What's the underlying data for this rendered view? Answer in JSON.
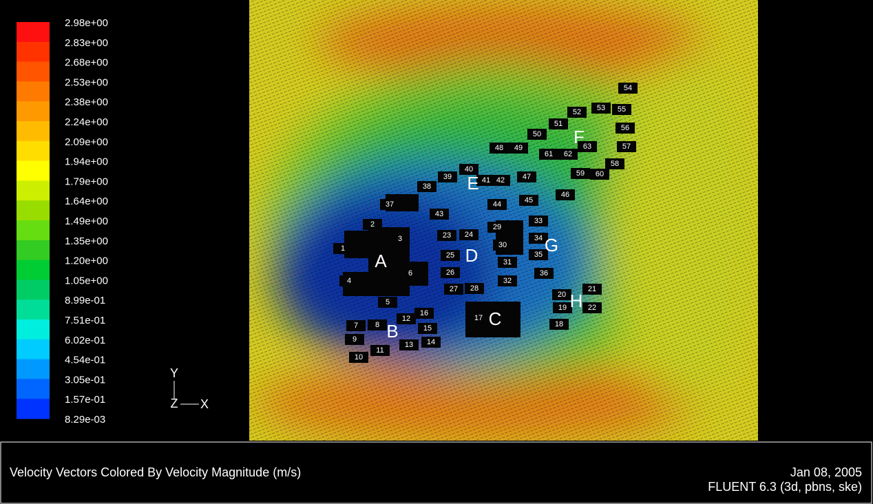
{
  "legend": {
    "labels": [
      "2.98e+00",
      "2.83e+00",
      "2.68e+00",
      "2.53e+00",
      "2.38e+00",
      "2.24e+00",
      "2.09e+00",
      "1.94e+00",
      "1.79e+00",
      "1.64e+00",
      "1.49e+00",
      "1.35e+00",
      "1.20e+00",
      "1.05e+00",
      "8.99e-01",
      "7.51e-01",
      "6.02e-01",
      "4.54e-01",
      "3.05e-01",
      "1.57e-01",
      "8.29e-03"
    ],
    "colors": [
      "#ff1010",
      "#ff3300",
      "#ff5500",
      "#ff7a00",
      "#ff9900",
      "#ffbb00",
      "#ffdd00",
      "#ffff00",
      "#ccee00",
      "#99dd00",
      "#66dd11",
      "#33cc22",
      "#00cc33",
      "#00cc66",
      "#00dd99",
      "#00eedd",
      "#00ccff",
      "#0099ff",
      "#0066ff",
      "#0033ff"
    ]
  },
  "axes": {
    "y": "Y",
    "z": "Z",
    "x": "X"
  },
  "buildings": [
    "1",
    "2",
    "3",
    "4",
    "5",
    "6",
    "7",
    "8",
    "9",
    "10",
    "11",
    "12",
    "13",
    "14",
    "15",
    "16",
    "17",
    "18",
    "19",
    "20",
    "21",
    "22",
    "23",
    "24",
    "25",
    "26",
    "27",
    "28",
    "29",
    "30",
    "31",
    "32",
    "33",
    "34",
    "35",
    "36",
    "37",
    "38",
    "39",
    "40",
    "41",
    "42",
    "43",
    "44",
    "45",
    "46",
    "47",
    "48",
    "49",
    "50",
    "51",
    "52",
    "53",
    "54",
    "55",
    "56",
    "57",
    "58",
    "59",
    "60",
    "61",
    "62",
    "63"
  ],
  "zones": [
    "A",
    "B",
    "C",
    "D",
    "E",
    "F",
    "G",
    "H"
  ],
  "footer": {
    "title": "Velocity Vectors Colored By Velocity Magnitude (m/s)",
    "date": "Jan 08, 2005",
    "solver": "FLUENT 6.3 (3d, pbns, ske)"
  }
}
